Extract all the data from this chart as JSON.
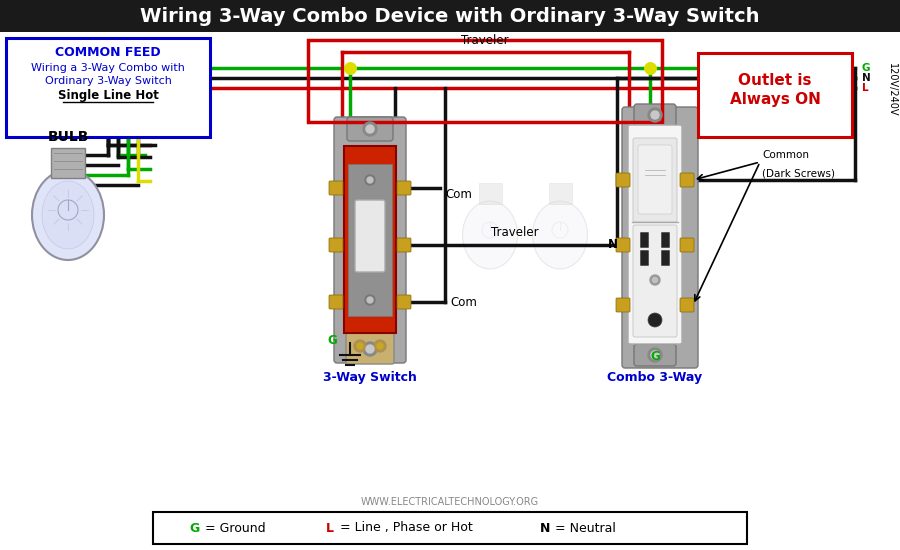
{
  "title": "Wiring 3-Way Combo Device with Ordinary 3-Way Switch",
  "title_bg": "#1a1a1a",
  "title_color": "#ffffff",
  "title_fontsize": 14,
  "bg_color": "#ffffff",
  "left_box_title": "COMMON FEED",
  "left_box_lines": [
    "Wiring a 3-Way Combo with",
    "Ordinary 3-Way Switch",
    "Single Line Hot"
  ],
  "right_box_text": "Outlet is\nAlways ON",
  "traveler_top_label": "Traveler",
  "traveler_mid_label": "Traveler",
  "com_label": "Com",
  "n_label": "N",
  "g_label_switch": "G",
  "g_label_combo": "G",
  "switch_label": "3-Way Switch",
  "combo_label": "Combo 3-Way",
  "bulb_label": "BULB",
  "common_dark_label1": "Common",
  "common_dark_label2": "(Dark Screws)",
  "voltage_label": "120V/240V",
  "website": "WWW.ELECTRICALTECHNOLOGY.ORG",
  "wire_black": "#111111",
  "wire_red": "#cc0000",
  "wire_green": "#00aa00",
  "wire_yellow": "#dddd00",
  "wire_white": "#dddddd",
  "L_label": "L",
  "N_label": "N",
  "G_label": "G"
}
